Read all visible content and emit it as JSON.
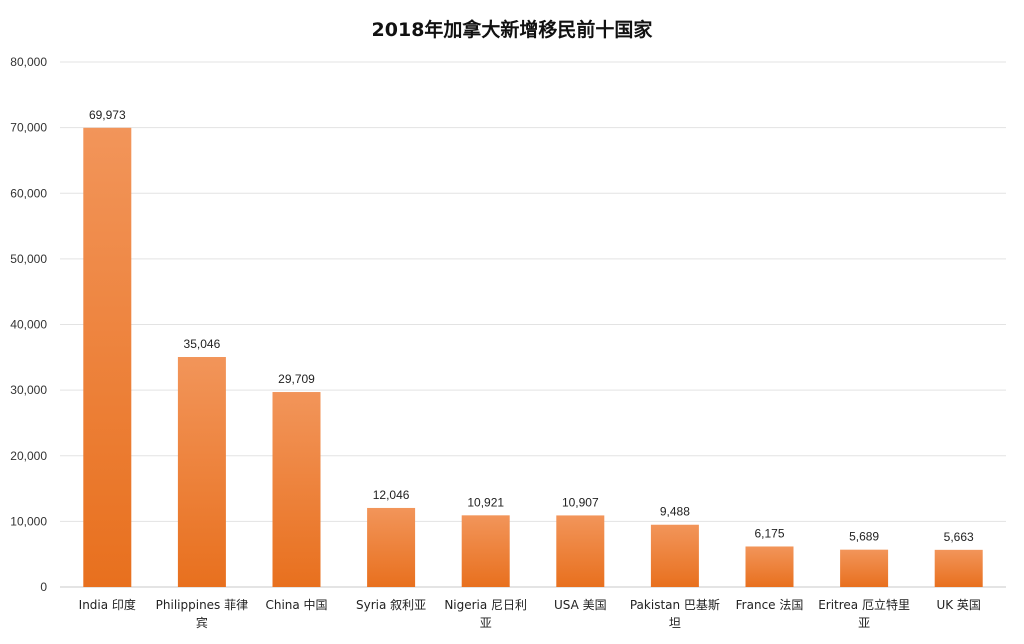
{
  "chart_data": {
    "type": "bar",
    "title": "2018年加拿大新增移民前十国家",
    "xlabel": "",
    "ylabel": "",
    "ylim": [
      0,
      80000
    ],
    "yticks": [
      0,
      10000,
      20000,
      30000,
      40000,
      50000,
      60000,
      70000,
      80000
    ],
    "ytick_labels": [
      "0",
      "10,000",
      "20,000",
      "30,000",
      "40,000",
      "50,000",
      "60,000",
      "70,000",
      "80,000"
    ],
    "grid": true,
    "legend": "none",
    "bar_color_top": "#f2955a",
    "bar_color_bottom": "#e8701e",
    "categories": [
      [
        "India 印度"
      ],
      [
        "Philippines 菲律",
        "宾"
      ],
      [
        "China 中国"
      ],
      [
        "Syria 叙利亚"
      ],
      [
        "Nigeria 尼日利",
        "亚"
      ],
      [
        "USA 美国"
      ],
      [
        "Pakistan 巴基斯",
        "坦"
      ],
      [
        "France 法国"
      ],
      [
        "Eritrea 厄立特里",
        "亚"
      ],
      [
        "UK 英国"
      ]
    ],
    "values": [
      69973,
      35046,
      29709,
      12046,
      10921,
      10907,
      9488,
      6175,
      5689,
      5663
    ],
    "data_labels": [
      "69,973",
      "35,046",
      "29,709",
      "12,046",
      "10,921",
      "10,907",
      "9,488",
      "6,175",
      "5,689",
      "5,663"
    ]
  }
}
